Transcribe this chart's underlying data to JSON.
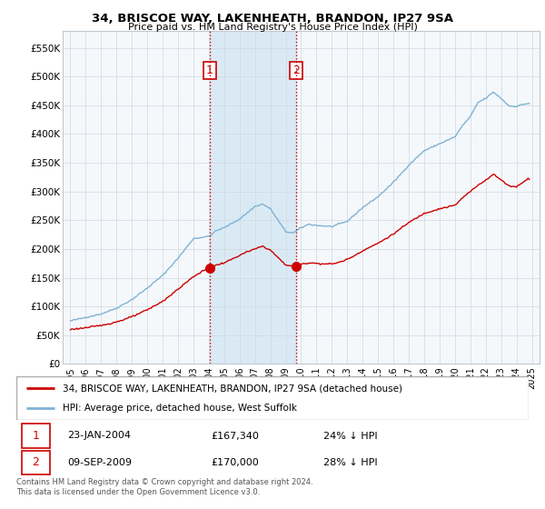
{
  "title": "34, BRISCOE WAY, LAKENHEATH, BRANDON, IP27 9SA",
  "subtitle": "Price paid vs. HM Land Registry's House Price Index (HPI)",
  "legend_line1": "34, BRISCOE WAY, LAKENHEATH, BRANDON, IP27 9SA (detached house)",
  "legend_line2": "HPI: Average price, detached house, West Suffolk",
  "transaction1_label": "1",
  "transaction1_date": "23-JAN-2004",
  "transaction1_price": "£167,340",
  "transaction1_hpi": "24% ↓ HPI",
  "transaction2_label": "2",
  "transaction2_date": "09-SEP-2009",
  "transaction2_price": "£170,000",
  "transaction2_hpi": "28% ↓ HPI",
  "footer": "Contains HM Land Registry data © Crown copyright and database right 2024.\nThis data is licensed under the Open Government Licence v3.0.",
  "hpi_color": "#7fb3d3",
  "price_color": "#cc0000",
  "vline_color": "#cc0000",
  "vline1_x": 2004.06,
  "vline2_x": 2009.69,
  "marker1_x": 2004.06,
  "marker1_y": 167340,
  "marker2_x": 2009.69,
  "marker2_y": 170000,
  "ylim_min": 0,
  "ylim_max": 580000,
  "xlim_min": 1994.5,
  "xlim_max": 2025.5,
  "yticks": [
    0,
    50000,
    100000,
    150000,
    200000,
    250000,
    300000,
    350000,
    400000,
    450000,
    500000,
    550000
  ],
  "ytick_labels": [
    "£0",
    "£50K",
    "£100K",
    "£150K",
    "£200K",
    "£250K",
    "£300K",
    "£350K",
    "£400K",
    "£450K",
    "£500K",
    "£550K"
  ],
  "xticks": [
    1995,
    1996,
    1997,
    1998,
    1999,
    2000,
    2001,
    2002,
    2003,
    2004,
    2005,
    2006,
    2007,
    2008,
    2009,
    2010,
    2011,
    2012,
    2013,
    2014,
    2015,
    2016,
    2017,
    2018,
    2019,
    2020,
    2021,
    2022,
    2023,
    2024,
    2025
  ],
  "highlight_x1": 2004.06,
  "highlight_x2": 2009.69,
  "highlight_color": "#daeaf5",
  "bg_color": "#f0f4f8",
  "chart_bg": "#f5f8fb"
}
